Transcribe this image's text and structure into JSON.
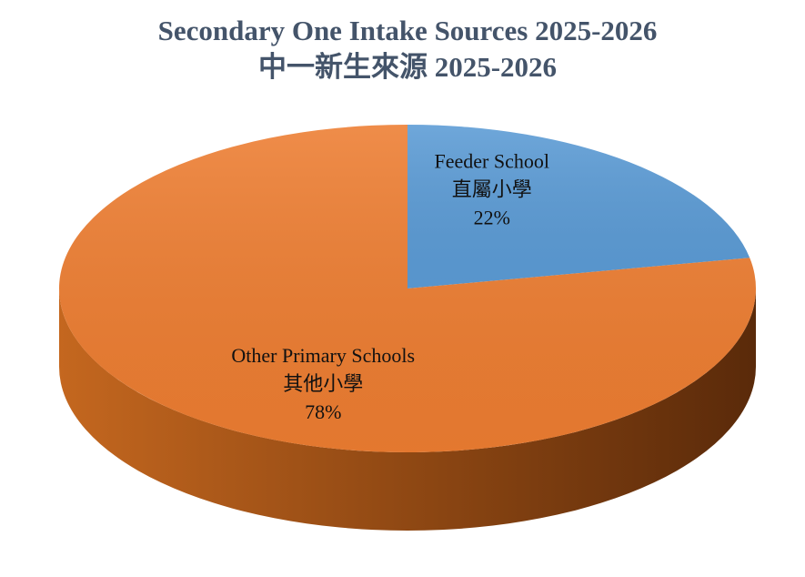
{
  "chart_data": {
    "type": "pie",
    "title": "Secondary One Intake Sources 2025-2026",
    "subtitle": "中一新生來源 2025-2026",
    "categories": [
      "Feeder School",
      "Other Primary Schools"
    ],
    "category_labels_zh": [
      "直屬小學",
      "其他小學"
    ],
    "values": [
      22,
      78
    ],
    "value_labels": [
      "22%",
      "78%"
    ],
    "colors": [
      "#5b9bd5",
      "#ed7d31"
    ]
  }
}
